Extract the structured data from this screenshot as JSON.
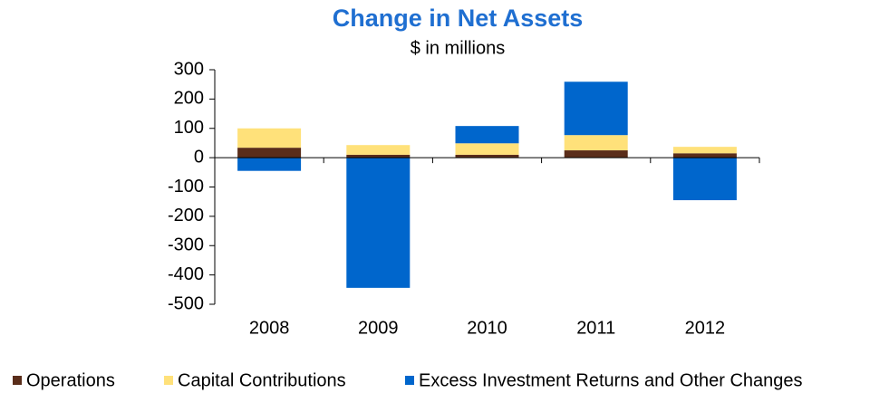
{
  "chart_data": {
    "type": "stacked_bar",
    "title": "Change in Net Assets",
    "subtitle": "$ in millions",
    "categories": [
      "2008",
      "2009",
      "2010",
      "2011",
      "2012"
    ],
    "series": [
      {
        "name": "Operations",
        "color": "#5a2d1a",
        "values": [
          34,
          10,
          10,
          25,
          15
        ]
      },
      {
        "name": "Capital Contributions",
        "color": "#ffe17a",
        "values": [
          66,
          33,
          39,
          52,
          22
        ]
      },
      {
        "name": "Excess Investment Returns and Other Changes",
        "color": "#0066cc",
        "values": [
          -45,
          -444,
          59,
          182,
          -145
        ]
      }
    ],
    "ylim": [
      -500,
      300
    ],
    "yticks": [
      -500,
      -400,
      -300,
      -200,
      -100,
      0,
      100,
      200,
      300
    ]
  }
}
